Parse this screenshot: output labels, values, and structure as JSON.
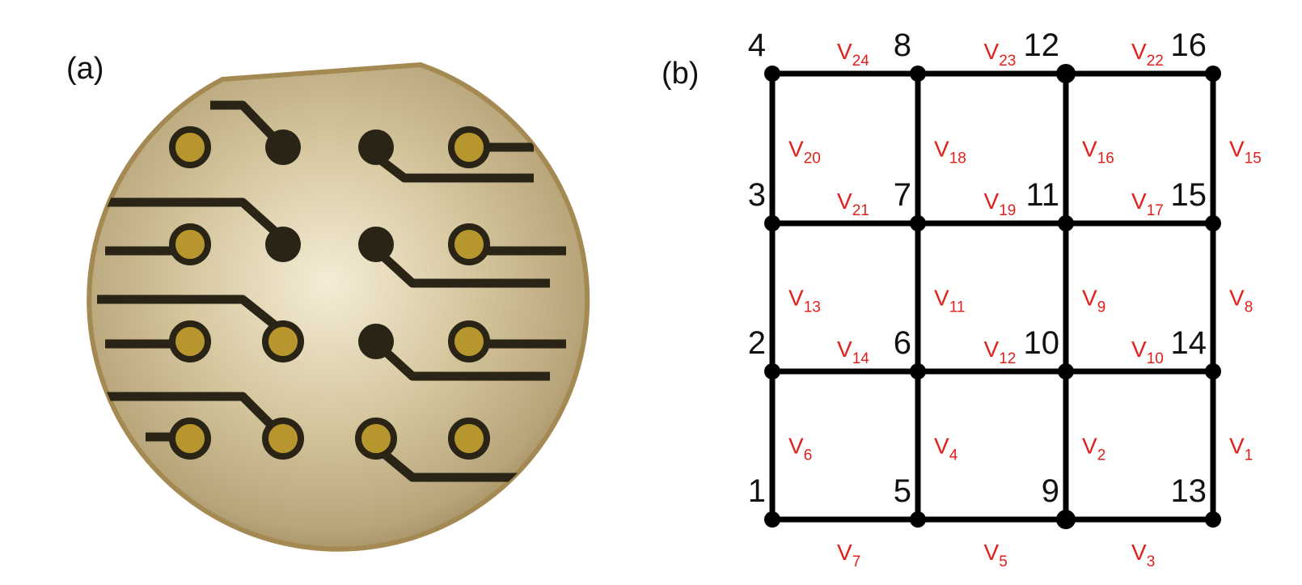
{
  "panels": {
    "a": {
      "label": "(a)"
    },
    "b": {
      "label": "(b)"
    }
  },
  "colors": {
    "edge_label": "#e0201c",
    "grid_line": "#000000",
    "board_gold": "#c9b68a",
    "board_edge": "#b59a5e",
    "trace": "#2a2416",
    "pad_gold": "#b8962e"
  },
  "nodes": [
    {
      "id": "1",
      "col": 0,
      "row": 0
    },
    {
      "id": "2",
      "col": 0,
      "row": 1
    },
    {
      "id": "3",
      "col": 0,
      "row": 2
    },
    {
      "id": "4",
      "col": 0,
      "row": 3
    },
    {
      "id": "5",
      "col": 1,
      "row": 0
    },
    {
      "id": "6",
      "col": 1,
      "row": 1
    },
    {
      "id": "7",
      "col": 1,
      "row": 2
    },
    {
      "id": "8",
      "col": 1,
      "row": 3
    },
    {
      "id": "9",
      "col": 2,
      "row": 0
    },
    {
      "id": "10",
      "col": 2,
      "row": 1
    },
    {
      "id": "11",
      "col": 2,
      "row": 2
    },
    {
      "id": "12",
      "col": 2,
      "row": 3
    },
    {
      "id": "13",
      "col": 3,
      "row": 0
    },
    {
      "id": "14",
      "col": 3,
      "row": 1
    },
    {
      "id": "15",
      "col": 3,
      "row": 2
    },
    {
      "id": "16",
      "col": 3,
      "row": 3
    }
  ],
  "edges": [
    {
      "label": "V",
      "sub": "1",
      "from": "13",
      "to": "14"
    },
    {
      "label": "V",
      "sub": "2",
      "from": "9",
      "to": "10"
    },
    {
      "label": "V",
      "sub": "3",
      "from": "9",
      "to": "13"
    },
    {
      "label": "V",
      "sub": "4",
      "from": "5",
      "to": "6"
    },
    {
      "label": "V",
      "sub": "5",
      "from": "5",
      "to": "9"
    },
    {
      "label": "V",
      "sub": "6",
      "from": "1",
      "to": "2"
    },
    {
      "label": "V",
      "sub": "7",
      "from": "1",
      "to": "5"
    },
    {
      "label": "V",
      "sub": "8",
      "from": "14",
      "to": "15"
    },
    {
      "label": "V",
      "sub": "9",
      "from": "10",
      "to": "11"
    },
    {
      "label": "V",
      "sub": "10",
      "from": "10",
      "to": "14"
    },
    {
      "label": "V",
      "sub": "11",
      "from": "6",
      "to": "7"
    },
    {
      "label": "V",
      "sub": "12",
      "from": "6",
      "to": "10"
    },
    {
      "label": "V",
      "sub": "13",
      "from": "2",
      "to": "3"
    },
    {
      "label": "V",
      "sub": "14",
      "from": "2",
      "to": "6"
    },
    {
      "label": "V",
      "sub": "15",
      "from": "15",
      "to": "16"
    },
    {
      "label": "V",
      "sub": "16",
      "from": "11",
      "to": "12"
    },
    {
      "label": "V",
      "sub": "17",
      "from": "11",
      "to": "15"
    },
    {
      "label": "V",
      "sub": "18",
      "from": "7",
      "to": "8"
    },
    {
      "label": "V",
      "sub": "19",
      "from": "7",
      "to": "11"
    },
    {
      "label": "V",
      "sub": "20",
      "from": "3",
      "to": "4"
    },
    {
      "label": "V",
      "sub": "21",
      "from": "3",
      "to": "7"
    },
    {
      "label": "V",
      "sub": "22",
      "from": "12",
      "to": "16"
    },
    {
      "label": "V",
      "sub": "23",
      "from": "8",
      "to": "12"
    },
    {
      "label": "V",
      "sub": "24",
      "from": "4",
      "to": "8"
    }
  ]
}
